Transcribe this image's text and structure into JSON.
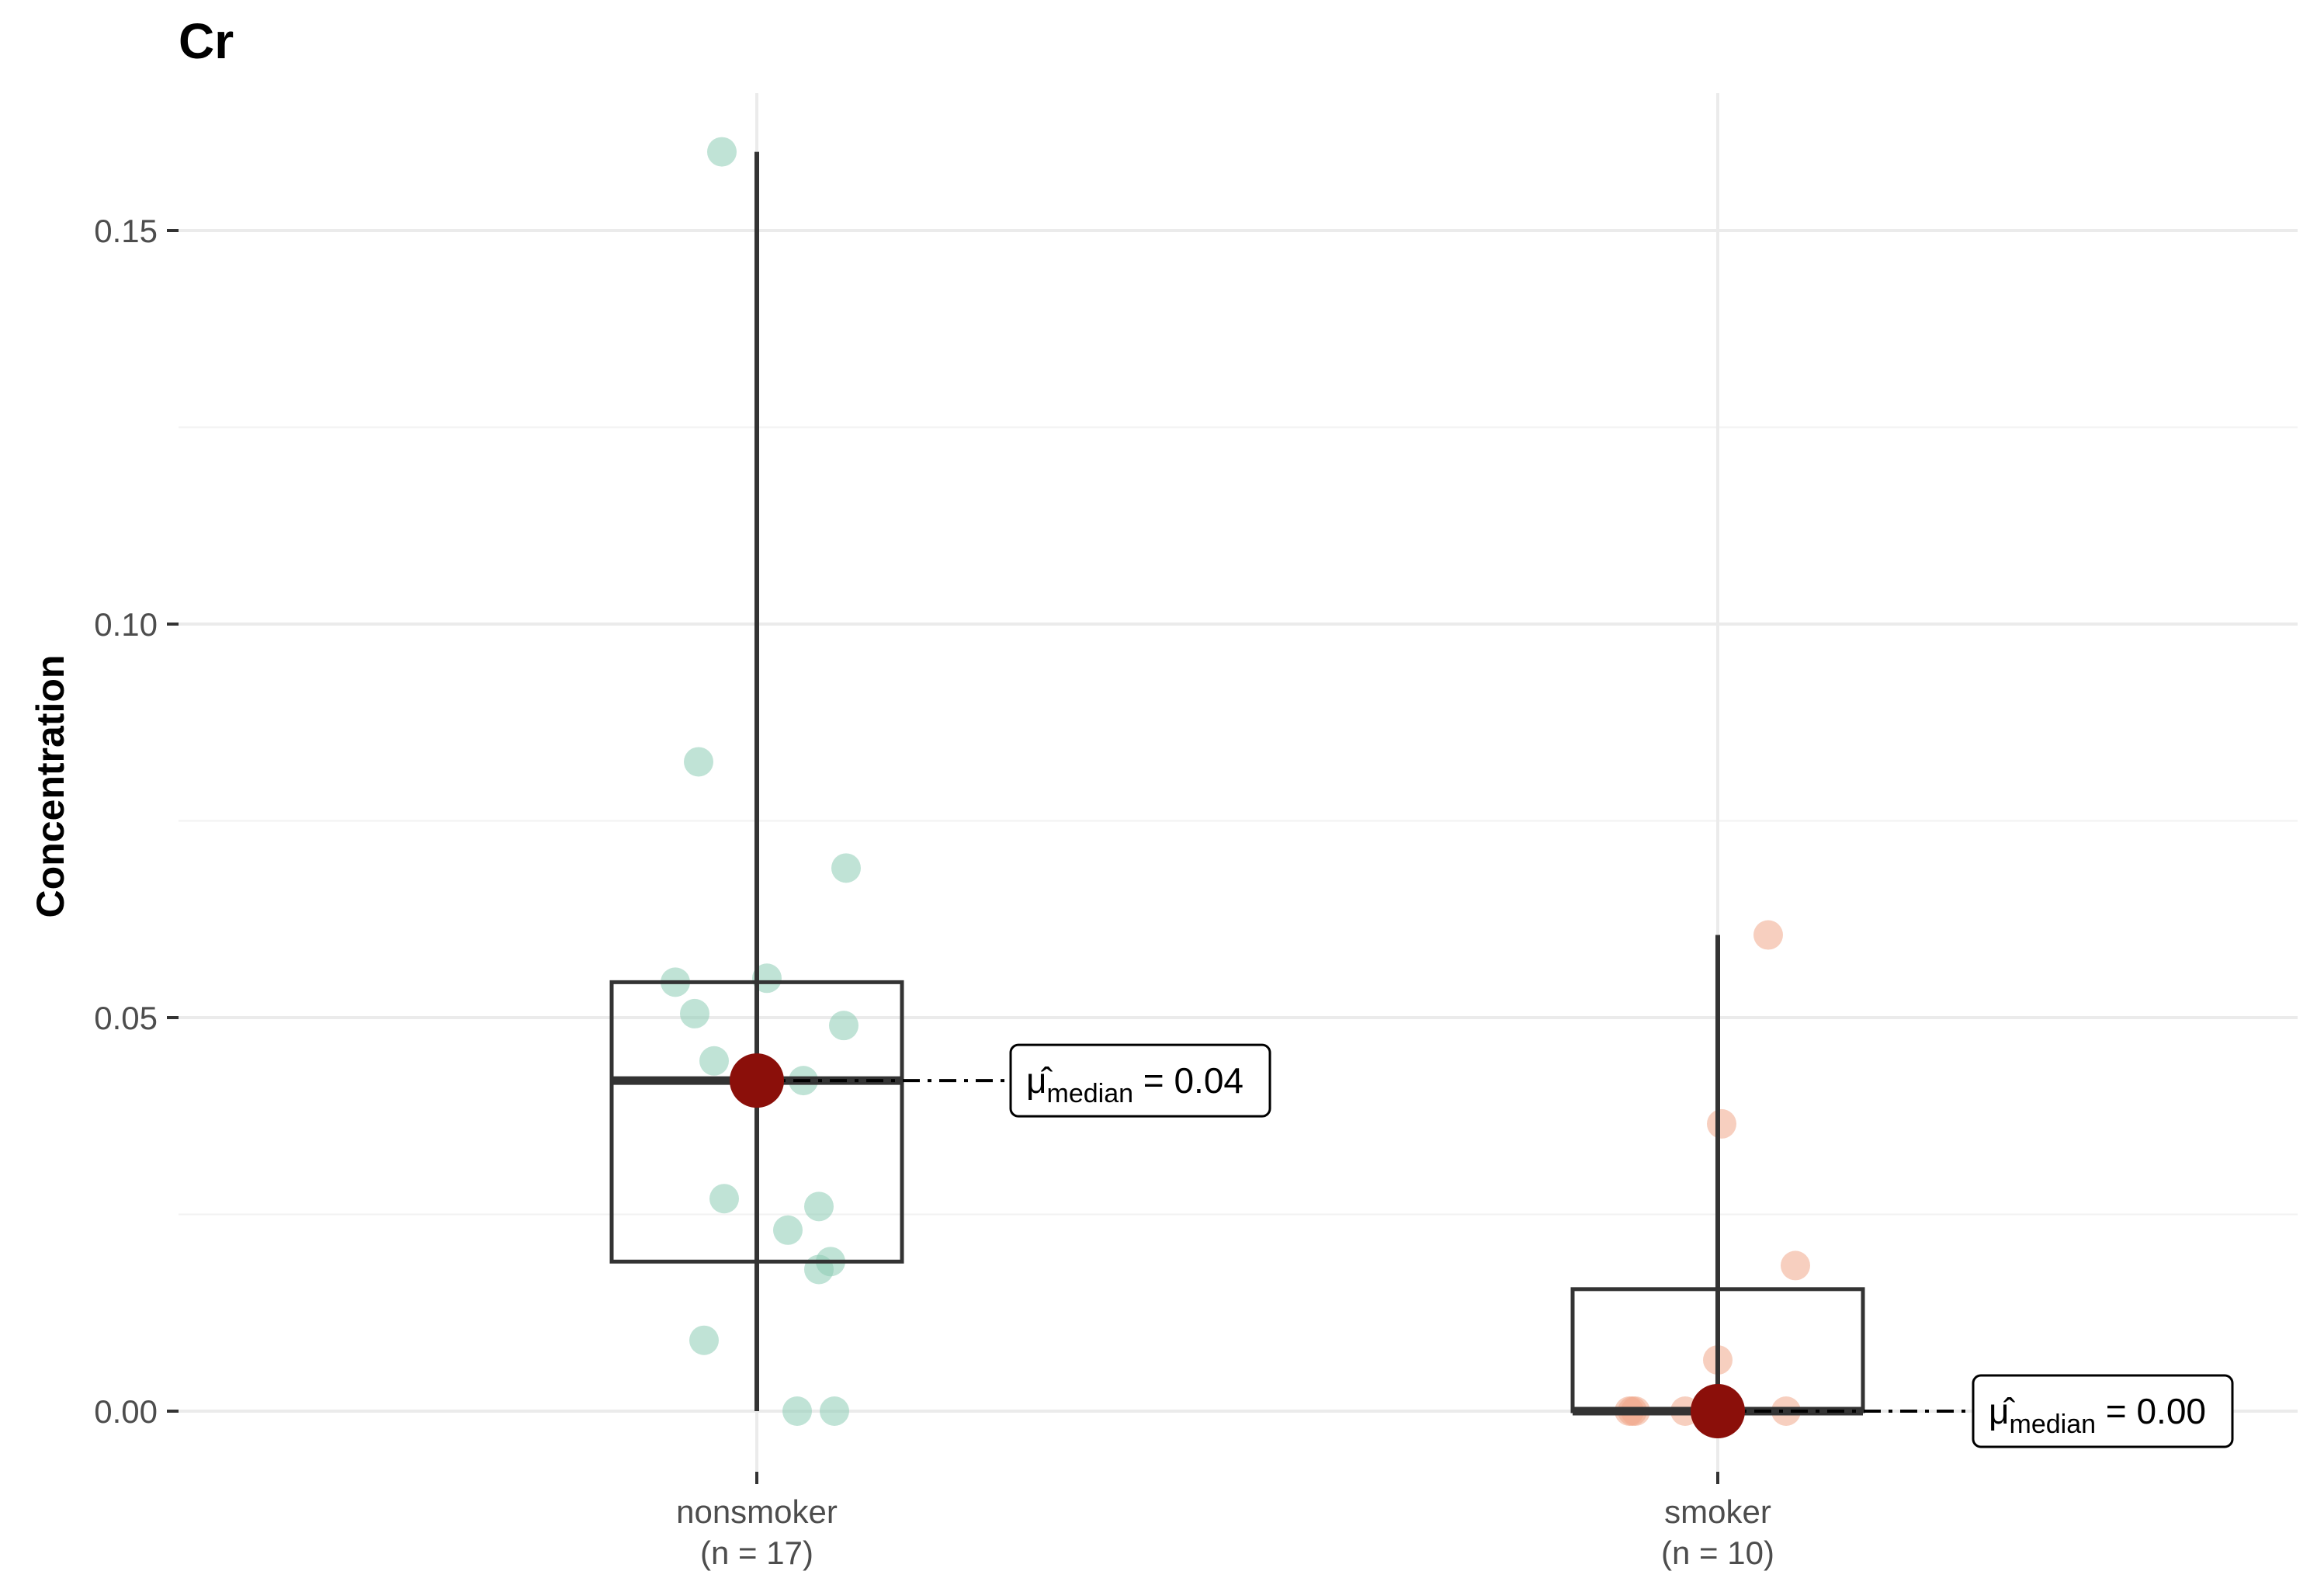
{
  "chart_data": {
    "type": "boxplot",
    "title": "Cr",
    "xlabel": "",
    "ylabel": "Concentration",
    "ylim": [
      -0.008,
      0.168
    ],
    "yticks": [
      "0.00",
      "0.05",
      "0.10",
      "0.15"
    ],
    "ytick_values": [
      0.0,
      0.05,
      0.1,
      0.15
    ],
    "grid": true,
    "groups": [
      {
        "name": "nonsmoker",
        "n_label": "(n = 17)",
        "color": "#8cccb4",
        "box": {
          "min": 0.0,
          "q1": 0.019,
          "median": 0.042,
          "q3": 0.0545,
          "max": 0.16
        },
        "points": [
          0.16,
          0.0825,
          0.069,
          0.0545,
          0.055,
          0.0505,
          0.049,
          0.0445,
          0.042,
          0.027,
          0.026,
          0.023,
          0.019,
          0.018,
          0.009,
          0.0,
          0.0
        ],
        "median_label": {
          "symbol": "μ̂",
          "subscript": "median",
          "text": "= 0.04"
        }
      },
      {
        "name": "smoker",
        "n_label": "(n = 10)",
        "color": "#f0a88a",
        "box": {
          "min": 0.0,
          "q1": 0.0,
          "median": 0.0,
          "q3": 0.0155,
          "max": 0.0605
        },
        "points": [
          0.0605,
          0.0365,
          0.0185,
          0.0065,
          0.0,
          0.0,
          0.0,
          0.0,
          0.0,
          0.0
        ],
        "median_label": {
          "symbol": "μ̂",
          "subscript": "median",
          "text": "= 0.00"
        }
      }
    ],
    "median_point_color": "#8b0f0a",
    "box_color": "#333333",
    "grid_color": "#ebebeb"
  }
}
